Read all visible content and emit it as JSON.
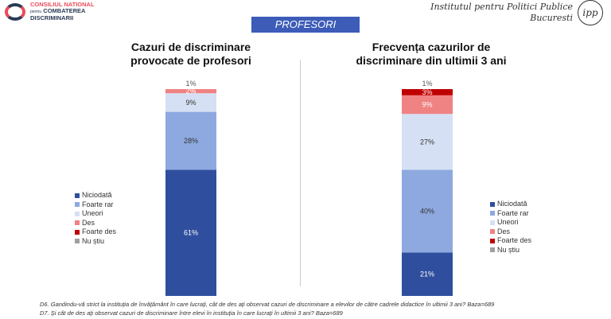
{
  "header": {
    "logo_line1": "CONSILIUL NATIONAL",
    "logo_small": "pentru",
    "logo_line2": "COMBATEREA",
    "logo_line3": "DISCRIMINARII",
    "ipp_line1": "Institutul pentru Politici Publice",
    "ipp_line2": "Bucuresti",
    "ipp_mark": "ipp",
    "banner": "PROFESORI"
  },
  "colors": {
    "Niciodată": "#2f4f9e",
    "Foarte rar": "#8ea9e0",
    "Uneori": "#d6e0f4",
    "Des": "#ef8282",
    "Foarte des": "#c00000",
    "Nu știu": "#a0a0a0"
  },
  "chart_data": [
    {
      "type": "bar",
      "stacked": true,
      "title": "Cazuri de discriminare provocate de profesori",
      "title_line1": "Cazuri de discriminare",
      "title_line2": "provocate de profesori",
      "legend": [
        "Niciodată",
        "Foarte rar",
        "Uneori",
        "Des",
        "Foarte des",
        "Nu știu"
      ],
      "legend_position": "left",
      "series": [
        {
          "name": "Niciodată",
          "value": 61,
          "label": "61%"
        },
        {
          "name": "Foarte rar",
          "value": 28,
          "label": "28%"
        },
        {
          "name": "Uneori",
          "value": 9,
          "label": "9%"
        },
        {
          "name": "Des",
          "value": 2,
          "label": "2%"
        },
        {
          "name": "Foarte des",
          "value": 0,
          "label": ""
        },
        {
          "name": "Nu știu",
          "value": 1,
          "label": "1%"
        }
      ]
    },
    {
      "type": "bar",
      "stacked": true,
      "title": "Frecvența cazurilor de discriminare din ultimii 3 ani",
      "title_line1": "Frecvența cazurilor de",
      "title_line2": "discriminare din ultimii 3 ani",
      "legend": [
        "Niciodată",
        "Foarte rar",
        "Uneori",
        "Des",
        "Foarte des",
        "Nu știu"
      ],
      "legend_position": "right",
      "series": [
        {
          "name": "Niciodată",
          "value": 21,
          "label": "21%"
        },
        {
          "name": "Foarte rar",
          "value": 40,
          "label": "40%"
        },
        {
          "name": "Uneori",
          "value": 27,
          "label": "27%"
        },
        {
          "name": "Des",
          "value": 9,
          "label": "9%"
        },
        {
          "name": "Foarte des",
          "value": 3,
          "label": "3%"
        },
        {
          "name": "Nu știu",
          "value": 1,
          "label": "1%"
        }
      ]
    }
  ],
  "notes": [
    "D6.  Gandindu-vă strict la instituția de învățământ în care lucrați, cât de des ați observat cazuri de discriminare a elevilor de către cadrele didactice în ultimii 3 ani? Baza=689",
    "D7.  Și cât de des ați observat cazuri de discriminare între elevi în instituția în care lucrați în ultimii 3 ani? Baza=689"
  ]
}
